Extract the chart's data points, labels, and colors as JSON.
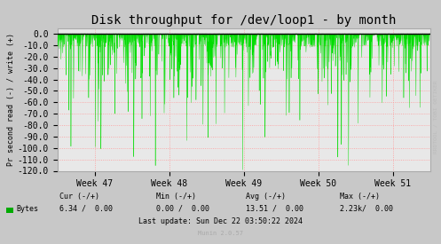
{
  "title": "Disk throughput for /dev/loop1 - by month",
  "ylabel": "Pr second read (-) / write (+)",
  "xlabel_ticks": [
    "Week 47",
    "Week 48",
    "Week 49",
    "Week 50",
    "Week 51"
  ],
  "ylim": [
    -120,
    5
  ],
  "yticks": [
    0.0,
    -10.0,
    -20.0,
    -30.0,
    -40.0,
    -50.0,
    -60.0,
    -70.0,
    -80.0,
    -90.0,
    -100.0,
    -110.0,
    -120.0
  ],
  "ytick_labels": [
    "0.0",
    "-10.0",
    "-20.0",
    "-30.0",
    "-40.0",
    "-50.0",
    "-60.0",
    "-70.0",
    "-80.0",
    "-90.0",
    "-100.0",
    "-110.0",
    "-120.0"
  ],
  "bg_color": "#c8c8c8",
  "plot_bg_color": "#e8e8e8",
  "grid_color": "#ff9999",
  "line_color": "#00dd00",
  "zero_line_color": "#000000",
  "border_color": "#aaaaaa",
  "legend_label": "Bytes",
  "legend_color": "#00aa00",
  "cur_label": "Cur (-/+)",
  "cur_val": "6.34 /  0.00",
  "min_label": "Min (-/+)",
  "min_val": "0.00 /  0.00",
  "avg_label": "Avg (-/+)",
  "avg_val": "13.51 /  0.00",
  "max_label": "Max (-/+)",
  "max_val": "2.23k/  0.00",
  "last_update": "Last update: Sun Dec 22 03:50:22 2024",
  "munin_label": "Munin 2.0.57",
  "watermark": "RRDTOOL / TOBI OETIKER",
  "title_fontsize": 10,
  "axis_fontsize": 7,
  "small_fontsize": 6,
  "n_points": 2000
}
